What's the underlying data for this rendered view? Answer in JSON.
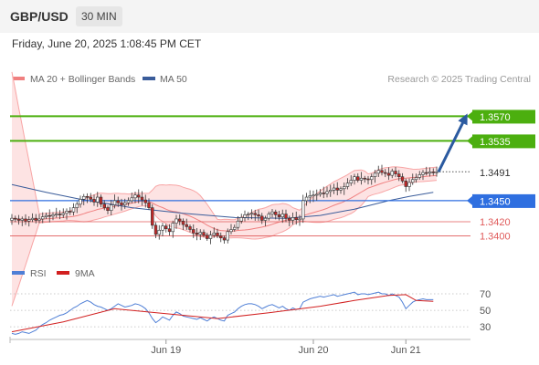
{
  "header": {
    "pair": "GBP/USD",
    "timeframe": "30 MIN",
    "datetime": "Friday, June 20, 2025 1:08:45 PM CET"
  },
  "colors": {
    "bollinger": "#f8a5a5",
    "bollinger_fill": "#fde3e3",
    "ma20": "#f08080",
    "ma50": "#3a5c9a",
    "resistance": "#4caf0f",
    "pivot": "#2f6fe0",
    "support": "#e05a5a",
    "current": "#333333",
    "arrow": "#2b5aa0",
    "rsi": "#4f7fd6",
    "rsi_ma": "#d22020",
    "candle_up": "#ffffff",
    "candle_down": "#c62828",
    "candle_edge": "#333333"
  },
  "chart_data": [
    {
      "type": "candlestick",
      "title": "",
      "legend": [
        {
          "label": "MA 20 + Bollinger Bands",
          "color": "#f08080"
        },
        {
          "label": "MA 50",
          "color": "#3a5c9a"
        }
      ],
      "legend_position": "top-left",
      "credit": "Research © 2025 Trading Central",
      "ylim": [
        1.3385,
        1.359
      ],
      "x_ticks": [
        "Jun 19",
        "Jun 20",
        "Jun 21"
      ],
      "levels": [
        {
          "value": 1.357,
          "label": "1.3570",
          "kind": "resistance"
        },
        {
          "value": 1.3535,
          "label": "1.3535",
          "kind": "resistance"
        },
        {
          "value": 1.3491,
          "label": "1.3491",
          "kind": "current"
        },
        {
          "value": 1.345,
          "label": "1.3450",
          "kind": "pivot"
        },
        {
          "value": 1.342,
          "label": "1.3420",
          "kind": "support"
        },
        {
          "value": 1.34,
          "label": "1.3400",
          "kind": "support"
        }
      ],
      "close_series": [
        1.3425,
        1.3424,
        1.3422,
        1.3424,
        1.3421,
        1.3423,
        1.3425,
        1.3422,
        1.3424,
        1.3427,
        1.3429,
        1.3428,
        1.343,
        1.3431,
        1.343,
        1.3432,
        1.3435,
        1.3434,
        1.344,
        1.3445,
        1.3452,
        1.3456,
        1.3455,
        1.3452,
        1.3448,
        1.3455,
        1.3445,
        1.344,
        1.3436,
        1.3444,
        1.345,
        1.3447,
        1.3444,
        1.3447,
        1.345,
        1.3454,
        1.3458,
        1.3455,
        1.3451,
        1.3447,
        1.344,
        1.3415,
        1.3402,
        1.3408,
        1.3414,
        1.341,
        1.3406,
        1.3418,
        1.3424,
        1.3421,
        1.3416,
        1.3413,
        1.3409,
        1.3404,
        1.3402,
        1.3405,
        1.3401,
        1.3396,
        1.3401,
        1.3404,
        1.34,
        1.3397,
        1.3394,
        1.3406,
        1.3409,
        1.3412,
        1.3421,
        1.3426,
        1.343,
        1.3431,
        1.3432,
        1.343,
        1.3428,
        1.3422,
        1.3425,
        1.3431,
        1.3434,
        1.343,
        1.3427,
        1.3431,
        1.3425,
        1.3422,
        1.3426,
        1.3423,
        1.3424,
        1.345,
        1.3455,
        1.3457,
        1.3458,
        1.3459,
        1.3461,
        1.346,
        1.3463,
        1.3465,
        1.3468,
        1.3465,
        1.3467,
        1.347,
        1.3475,
        1.3479,
        1.3484,
        1.3479,
        1.3482,
        1.3481,
        1.348,
        1.3484,
        1.3489,
        1.3493,
        1.349,
        1.3489,
        1.3486,
        1.3492,
        1.3488,
        1.3484,
        1.3478,
        1.347,
        1.3476,
        1.348,
        1.3483,
        1.3487,
        1.349,
        1.3489,
        1.3491,
        1.349,
        1.3491
      ],
      "ma50": [
        [
          0,
          1.3473
        ],
        [
          10,
          1.3462
        ],
        [
          20,
          1.3452
        ],
        [
          35,
          1.344
        ],
        [
          50,
          1.3432
        ],
        [
          65,
          1.3426
        ],
        [
          80,
          1.3425
        ],
        [
          90,
          1.3429
        ],
        [
          100,
          1.3438
        ],
        [
          110,
          1.345
        ],
        [
          116,
          1.3456
        ],
        [
          123,
          1.3462
        ]
      ]
    },
    {
      "type": "line",
      "title": "",
      "legend": [
        {
          "label": "RSI",
          "color": "#4f7fd6"
        },
        {
          "label": "9MA",
          "color": "#d22020"
        }
      ],
      "ylim": [
        18,
        80
      ],
      "y_ticks": [
        70,
        50,
        30
      ],
      "rsi": [
        22,
        21,
        22,
        24,
        23,
        22,
        24,
        26,
        30,
        33,
        35,
        38,
        40,
        42,
        44,
        45,
        47,
        50,
        53,
        55,
        58,
        60,
        62,
        60,
        57,
        55,
        54,
        52,
        50,
        52,
        55,
        58,
        56,
        54,
        55,
        56,
        58,
        57,
        55,
        52,
        47,
        40,
        35,
        38,
        42,
        40,
        38,
        44,
        48,
        46,
        43,
        42,
        41,
        40,
        39,
        41,
        39,
        37,
        40,
        42,
        40,
        38,
        37,
        44,
        46,
        48,
        52,
        55,
        57,
        58,
        58,
        57,
        55,
        52,
        54,
        56,
        57,
        55,
        53,
        55,
        52,
        50,
        53,
        51,
        52,
        60,
        62,
        64,
        65,
        66,
        67,
        66,
        67,
        68,
        69,
        67,
        68,
        69,
        70,
        71,
        72,
        69,
        70,
        70,
        69,
        70,
        71,
        72,
        70,
        70,
        68,
        70,
        68,
        66,
        60,
        52,
        56,
        60,
        62,
        63,
        64,
        63,
        63,
        63
      ],
      "rsi_ma": [
        [
          0,
          24
        ],
        [
          15,
          36
        ],
        [
          30,
          52
        ],
        [
          45,
          46
        ],
        [
          60,
          40
        ],
        [
          75,
          47
        ],
        [
          90,
          55
        ],
        [
          100,
          62
        ],
        [
          110,
          68
        ],
        [
          115,
          69
        ],
        [
          118,
          62
        ],
        [
          123,
          61
        ]
      ]
    }
  ]
}
